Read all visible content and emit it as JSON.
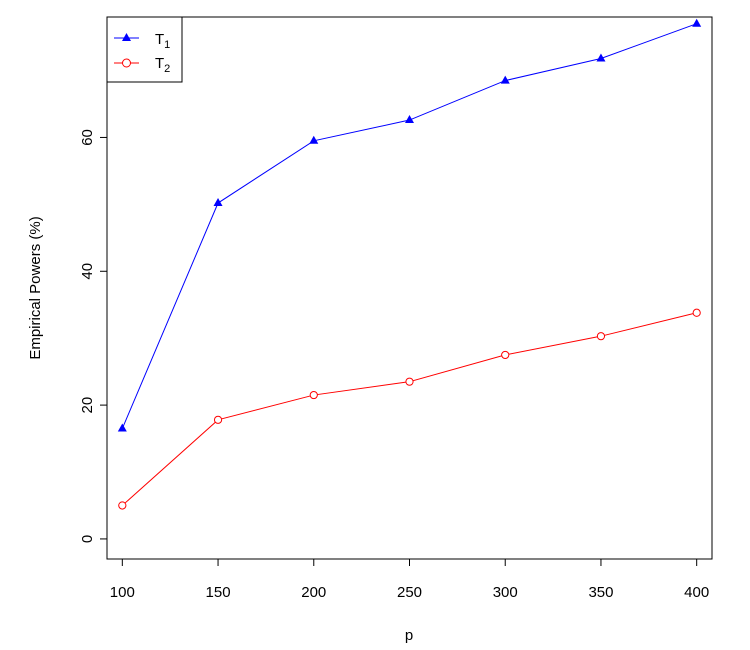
{
  "chart_data": {
    "type": "line",
    "title": "",
    "xlabel": "p",
    "ylabel": "Empirical Powers (%)",
    "x": [
      100,
      150,
      200,
      250,
      300,
      350,
      400
    ],
    "xticks": [
      "100",
      "150",
      "200",
      "250",
      "300",
      "350",
      "400"
    ],
    "yticks": [
      "0",
      "20",
      "40",
      "60"
    ],
    "xlim": [
      92,
      408
    ],
    "ylim": [
      -3,
      78
    ],
    "grid": false,
    "legend_position": "top-left",
    "series": [
      {
        "name": "T1",
        "label_main": "T",
        "label_sub": "1",
        "color": "#0000ff",
        "marker": "filled-triangle",
        "values": [
          16.5,
          50.2,
          59.5,
          62.6,
          68.5,
          71.8,
          77.0
        ]
      },
      {
        "name": "T2",
        "label_main": "T",
        "label_sub": "2",
        "color": "#ff0000",
        "marker": "open-circle",
        "values": [
          5.0,
          17.8,
          21.5,
          23.5,
          27.5,
          30.3,
          33.8
        ]
      }
    ]
  }
}
